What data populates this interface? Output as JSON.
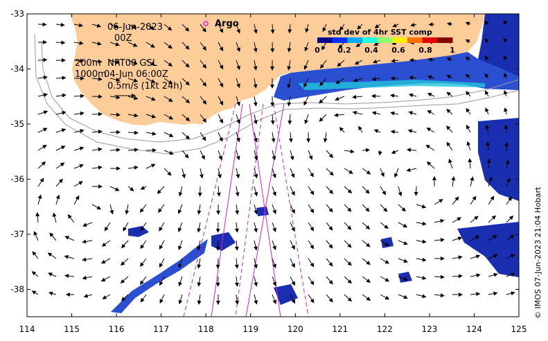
{
  "map": {
    "date_label": "06-Jun-2023",
    "time_label": "00Z",
    "argo_label": "Argo",
    "isobath_label": "200m",
    "isobath2_label": "1000m",
    "source_label": "NRT00 GSL",
    "altimetry_label": "04-Jun 06:00Z",
    "scale_label": "0.5m/s (1kt 24h)",
    "credit": "© IMOS 07-Jun-2023 21:04 Hobart",
    "colors": {
      "land": "#fccc99",
      "sst_low": "#1a2fb0",
      "sst_mid": "#22c3d9",
      "argo_marker": "#e020e0",
      "track": "#cc22cc",
      "isobath": "#999999"
    }
  },
  "colorbar": {
    "title": "std dev of 4hr SST comp",
    "ticks": [
      "0",
      "0.2",
      "0.4",
      "0.6",
      "0.8",
      "1"
    ],
    "colors": [
      "#00008f",
      "#0030ff",
      "#00a8ff",
      "#20ffdf",
      "#8fff70",
      "#ffef00",
      "#ff7000",
      "#e00000",
      "#800000"
    ]
  },
  "axes": {
    "x_ticks": [
      "114",
      "115",
      "116",
      "117",
      "118",
      "119",
      "120",
      "121",
      "122",
      "123",
      "124",
      "125"
    ],
    "y_ticks": [
      "-33",
      "-34",
      "-35",
      "-36",
      "-37",
      "-38"
    ]
  }
}
